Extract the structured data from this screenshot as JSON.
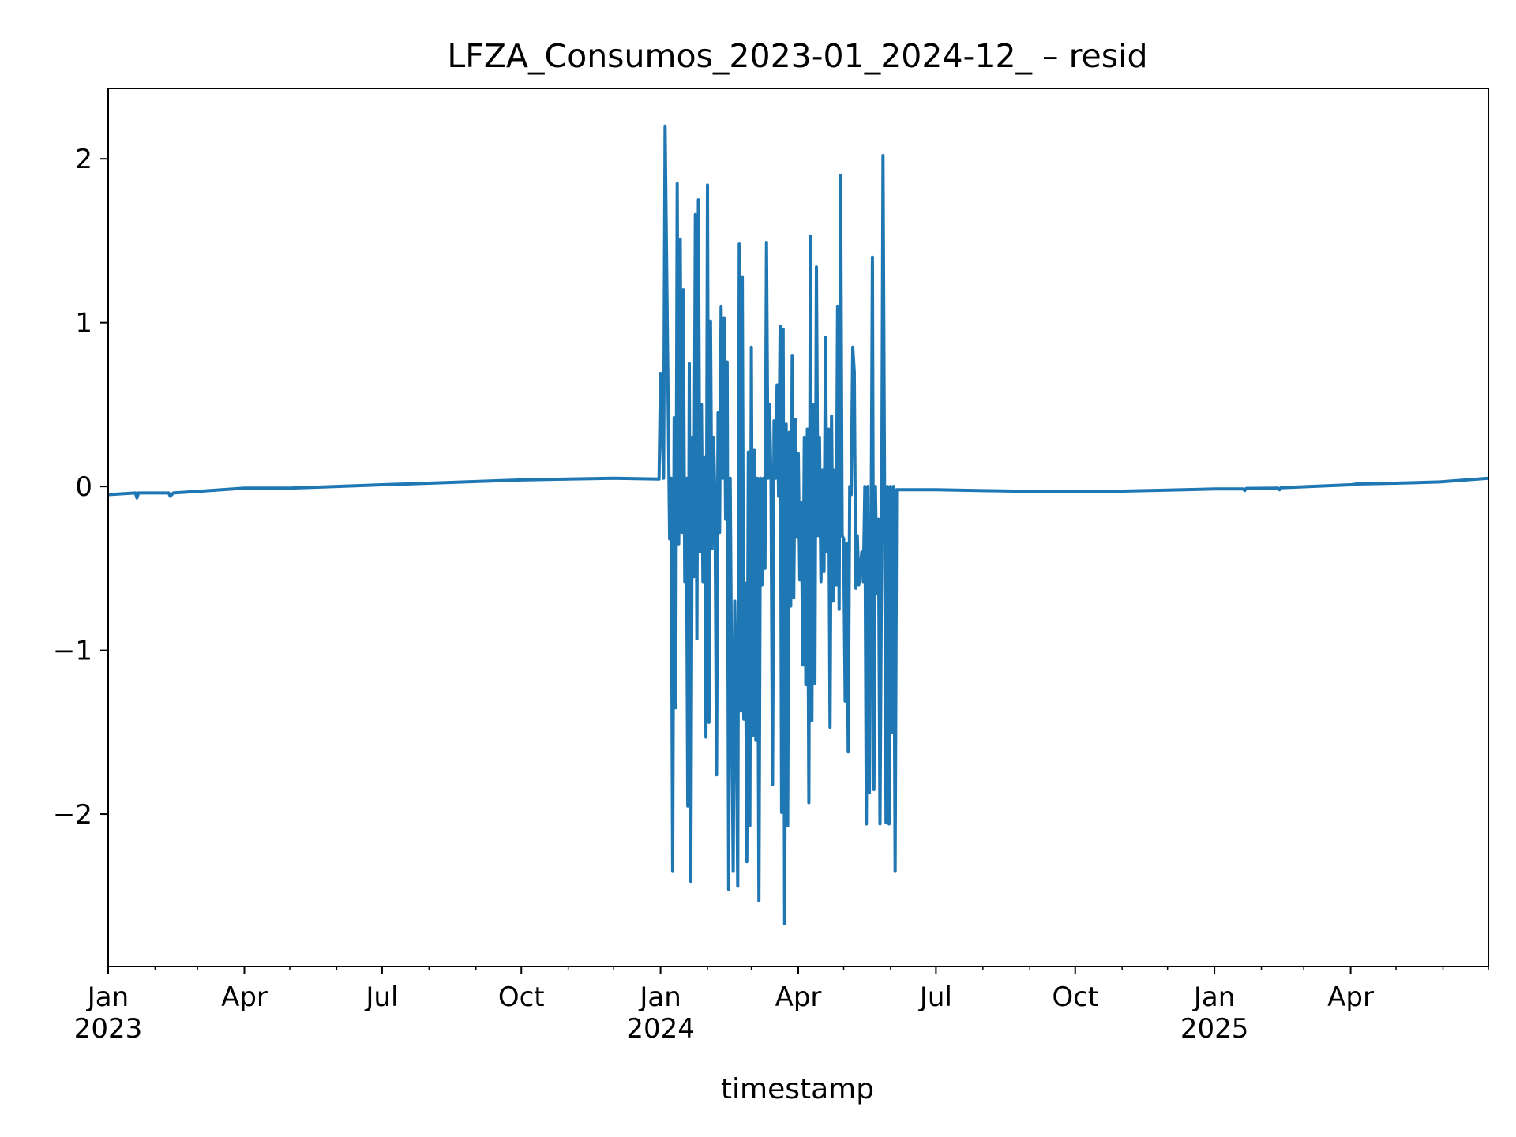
{
  "chart_data": {
    "type": "line",
    "title": "LFZA_Consumos_2023-01_2024-12_ – resid",
    "xlabel": "timestamp",
    "ylabel": "",
    "xlim": [
      "2023-01-01",
      "2025-07-01"
    ],
    "ylim": [
      -2.93,
      2.43
    ],
    "grid": false,
    "legend": "none",
    "line_color": "#1f77b4",
    "yticks": [
      {
        "value": 2,
        "label": "2"
      },
      {
        "value": 1,
        "label": "1"
      },
      {
        "value": 0,
        "label": "0"
      },
      {
        "value": -1,
        "label": "−1"
      },
      {
        "value": -2,
        "label": "−2"
      }
    ],
    "xticks": [
      {
        "date": "2023-01-01",
        "label": "Jan",
        "year": "2023"
      },
      {
        "date": "2023-04-01",
        "label": "Apr",
        "year": ""
      },
      {
        "date": "2023-07-01",
        "label": "Jul",
        "year": ""
      },
      {
        "date": "2023-10-01",
        "label": "Oct",
        "year": ""
      },
      {
        "date": "2024-01-01",
        "label": "Jan",
        "year": "2024"
      },
      {
        "date": "2024-04-01",
        "label": "Apr",
        "year": ""
      },
      {
        "date": "2024-07-01",
        "label": "Jul",
        "year": ""
      },
      {
        "date": "2024-10-01",
        "label": "Oct",
        "year": ""
      },
      {
        "date": "2025-01-01",
        "label": "Jan",
        "year": "2025"
      },
      {
        "date": "2025-04-01",
        "label": "Apr",
        "year": ""
      }
    ],
    "minor_xticks": [
      "2023-02-01",
      "2023-03-01",
      "2023-05-01",
      "2023-06-01",
      "2023-08-01",
      "2023-09-01",
      "2023-11-01",
      "2023-12-01",
      "2024-02-01",
      "2024-03-01",
      "2024-05-01",
      "2024-06-01",
      "2024-08-01",
      "2024-09-01",
      "2024-11-01",
      "2024-12-01",
      "2025-02-01",
      "2025-03-01",
      "2025-05-01",
      "2025-06-01",
      "2025-07-01"
    ],
    "series": [
      {
        "points": [
          [
            "2023-01-01",
            -0.05
          ],
          [
            "2023-01-19",
            -0.04
          ],
          [
            "2023-01-20",
            -0.07
          ],
          [
            "2023-01-21",
            -0.04
          ],
          [
            "2023-02-10",
            -0.04
          ],
          [
            "2023-02-11",
            -0.06
          ],
          [
            "2023-02-13",
            -0.04
          ],
          [
            "2023-03-01",
            -0.03
          ],
          [
            "2023-04-01",
            -0.01
          ],
          [
            "2023-05-01",
            -0.01
          ],
          [
            "2023-06-01",
            0.0
          ],
          [
            "2023-07-01",
            0.01
          ],
          [
            "2023-08-01",
            0.02
          ],
          [
            "2023-09-01",
            0.03
          ],
          [
            "2023-10-01",
            0.04
          ],
          [
            "2023-11-01",
            0.045
          ],
          [
            "2023-12-01",
            0.05
          ],
          [
            "2023-12-31",
            0.045
          ],
          [
            "2024-01-01",
            0.69
          ],
          [
            "2024-01-03",
            0.05
          ],
          [
            "2024-01-04",
            2.2
          ],
          [
            "2024-01-07",
            -0.32
          ],
          [
            "2024-01-08",
            0.05
          ],
          [
            "2024-01-09",
            -2.35
          ],
          [
            "2024-01-10",
            0.42
          ],
          [
            "2024-01-11",
            -1.35
          ],
          [
            "2024-01-12",
            1.85
          ],
          [
            "2024-01-13",
            -0.35
          ],
          [
            "2024-01-14",
            1.51
          ],
          [
            "2024-01-15",
            -0.28
          ],
          [
            "2024-01-16",
            1.2
          ],
          [
            "2024-01-17",
            -0.58
          ],
          [
            "2024-01-18",
            0.05
          ],
          [
            "2024-01-19",
            -1.95
          ],
          [
            "2024-01-20",
            0.75
          ],
          [
            "2024-01-21",
            -2.41
          ],
          [
            "2024-01-22",
            0.3
          ],
          [
            "2024-01-23",
            -0.55
          ],
          [
            "2024-01-24",
            1.66
          ],
          [
            "2024-01-25",
            -0.93
          ],
          [
            "2024-01-26",
            1.75
          ],
          [
            "2024-01-27",
            -0.4
          ],
          [
            "2024-01-28",
            0.5
          ],
          [
            "2024-01-29",
            -0.58
          ],
          [
            "2024-01-30",
            0.18
          ],
          [
            "2024-01-31",
            -1.53
          ],
          [
            "2024-02-01",
            1.84
          ],
          [
            "2024-02-02",
            -1.44
          ],
          [
            "2024-02-03",
            1.01
          ],
          [
            "2024-02-04",
            -0.38
          ],
          [
            "2024-02-05",
            0.3
          ],
          [
            "2024-02-06",
            -0.1
          ],
          [
            "2024-02-07",
            -1.76
          ],
          [
            "2024-02-08",
            0.45
          ],
          [
            "2024-02-09",
            -0.28
          ],
          [
            "2024-02-10",
            1.1
          ],
          [
            "2024-02-11",
            0.05
          ],
          [
            "2024-02-12",
            1.03
          ],
          [
            "2024-02-13",
            -0.2
          ],
          [
            "2024-02-14",
            0.76
          ],
          [
            "2024-02-15",
            -2.46
          ],
          [
            "2024-02-16",
            0.05
          ],
          [
            "2024-02-17",
            -1.25
          ],
          [
            "2024-02-18",
            -2.35
          ],
          [
            "2024-02-19",
            -0.7
          ],
          [
            "2024-02-20",
            -1.28
          ],
          [
            "2024-02-21",
            -2.44
          ],
          [
            "2024-02-22",
            1.48
          ],
          [
            "2024-02-23",
            -1.37
          ],
          [
            "2024-02-24",
            1.28
          ],
          [
            "2024-02-25",
            -1.42
          ],
          [
            "2024-02-26",
            -0.59
          ],
          [
            "2024-02-27",
            -2.29
          ],
          [
            "2024-02-28",
            0.21
          ],
          [
            "2024-02-29",
            -2.07
          ],
          [
            "2024-03-01",
            0.85
          ],
          [
            "2024-03-02",
            -1.52
          ],
          [
            "2024-03-03",
            0.22
          ],
          [
            "2024-03-04",
            -1.55
          ],
          [
            "2024-03-05",
            0.05
          ],
          [
            "2024-03-06",
            -2.53
          ],
          [
            "2024-03-07",
            0.05
          ],
          [
            "2024-03-08",
            -0.6
          ],
          [
            "2024-03-09",
            0.05
          ],
          [
            "2024-03-10",
            -0.5
          ],
          [
            "2024-03-11",
            1.49
          ],
          [
            "2024-03-12",
            0.05
          ],
          [
            "2024-03-13",
            0.5
          ],
          [
            "2024-03-14",
            0.03
          ],
          [
            "2024-03-15",
            -1.82
          ],
          [
            "2024-03-16",
            0.4
          ],
          [
            "2024-03-17",
            0.05
          ],
          [
            "2024-03-18",
            0.62
          ],
          [
            "2024-03-19",
            -0.06
          ],
          [
            "2024-03-20",
            0.98
          ],
          [
            "2024-03-21",
            -1.99
          ],
          [
            "2024-03-22",
            0.96
          ],
          [
            "2024-03-23",
            -2.67
          ],
          [
            "2024-03-24",
            0.38
          ],
          [
            "2024-03-25",
            -2.07
          ],
          [
            "2024-03-26",
            0.33
          ],
          [
            "2024-03-27",
            -0.73
          ],
          [
            "2024-03-28",
            0.8
          ],
          [
            "2024-03-29",
            -0.68
          ],
          [
            "2024-03-30",
            0.41
          ],
          [
            "2024-03-31",
            -0.31
          ],
          [
            "2024-04-01",
            0.2
          ],
          [
            "2024-04-02",
            -0.57
          ],
          [
            "2024-04-03",
            -0.1
          ],
          [
            "2024-04-04",
            -1.09
          ],
          [
            "2024-04-05",
            0.3
          ],
          [
            "2024-04-06",
            -1.21
          ],
          [
            "2024-04-07",
            0.35
          ],
          [
            "2024-04-08",
            -1.93
          ],
          [
            "2024-04-09",
            1.53
          ],
          [
            "2024-04-10",
            -1.43
          ],
          [
            "2024-04-11",
            0.5
          ],
          [
            "2024-04-12",
            -1.2
          ],
          [
            "2024-04-13",
            1.34
          ],
          [
            "2024-04-14",
            -0.3
          ],
          [
            "2024-04-15",
            0.3
          ],
          [
            "2024-04-16",
            -0.58
          ],
          [
            "2024-04-17",
            0.1
          ],
          [
            "2024-04-18",
            -0.52
          ],
          [
            "2024-04-19",
            0.91
          ],
          [
            "2024-04-20",
            -0.4
          ],
          [
            "2024-04-21",
            0.35
          ],
          [
            "2024-04-22",
            -1.47
          ],
          [
            "2024-04-23",
            0.43
          ],
          [
            "2024-04-24",
            -0.7
          ],
          [
            "2024-04-25",
            0.1
          ],
          [
            "2024-04-26",
            -0.6
          ],
          [
            "2024-04-27",
            1.1
          ],
          [
            "2024-04-28",
            -0.75
          ],
          [
            "2024-04-29",
            1.9
          ],
          [
            "2024-04-30",
            -0.3
          ],
          [
            "2024-05-01",
            -0.32
          ],
          [
            "2024-05-02",
            -1.31
          ],
          [
            "2024-05-03",
            -0.35
          ],
          [
            "2024-05-04",
            -1.62
          ],
          [
            "2024-05-05",
            0.0
          ],
          [
            "2024-05-06",
            -0.05
          ],
          [
            "2024-05-07",
            0.85
          ],
          [
            "2024-05-08",
            0.7
          ],
          [
            "2024-05-09",
            -0.62
          ],
          [
            "2024-05-10",
            -0.3
          ],
          [
            "2024-05-11",
            -0.6
          ],
          [
            "2024-05-12",
            -0.5
          ],
          [
            "2024-05-13",
            -0.4
          ],
          [
            "2024-05-14",
            -0.58
          ],
          [
            "2024-05-15",
            0.0
          ],
          [
            "2024-05-16",
            -2.06
          ],
          [
            "2024-05-17",
            0.0
          ],
          [
            "2024-05-18",
            -1.87
          ],
          [
            "2024-05-19",
            -0.6
          ],
          [
            "2024-05-20",
            1.4
          ],
          [
            "2024-05-21",
            -1.85
          ],
          [
            "2024-05-22",
            0.0
          ],
          [
            "2024-05-23",
            -0.65
          ],
          [
            "2024-05-24",
            -0.2
          ],
          [
            "2024-05-25",
            -2.06
          ],
          [
            "2024-05-26",
            -0.5
          ],
          [
            "2024-05-27",
            2.02
          ],
          [
            "2024-05-28",
            0.0
          ],
          [
            "2024-05-29",
            -2.05
          ],
          [
            "2024-05-30",
            0.0
          ],
          [
            "2024-05-31",
            -2.06
          ],
          [
            "2024-06-01",
            0.0
          ],
          [
            "2024-06-02",
            -1.5
          ],
          [
            "2024-06-03",
            0.0
          ],
          [
            "2024-06-04",
            -2.35
          ],
          [
            "2024-06-05",
            -0.02
          ],
          [
            "2024-07-01",
            -0.02
          ],
          [
            "2024-08-01",
            -0.025
          ],
          [
            "2024-09-01",
            -0.03
          ],
          [
            "2024-10-01",
            -0.03
          ],
          [
            "2024-11-01",
            -0.028
          ],
          [
            "2024-12-01",
            -0.022
          ],
          [
            "2025-01-01",
            -0.015
          ],
          [
            "2025-01-20",
            -0.015
          ],
          [
            "2025-01-21",
            -0.025
          ],
          [
            "2025-01-22",
            -0.012
          ],
          [
            "2025-02-12",
            -0.01
          ],
          [
            "2025-02-13",
            -0.02
          ],
          [
            "2025-02-14",
            -0.008
          ],
          [
            "2025-03-01",
            -0.002
          ],
          [
            "2025-04-01",
            0.01
          ],
          [
            "2025-04-05",
            0.015
          ],
          [
            "2025-05-01",
            0.02
          ],
          [
            "2025-05-30",
            0.028
          ],
          [
            "2025-07-01",
            0.05
          ]
        ]
      }
    ]
  }
}
